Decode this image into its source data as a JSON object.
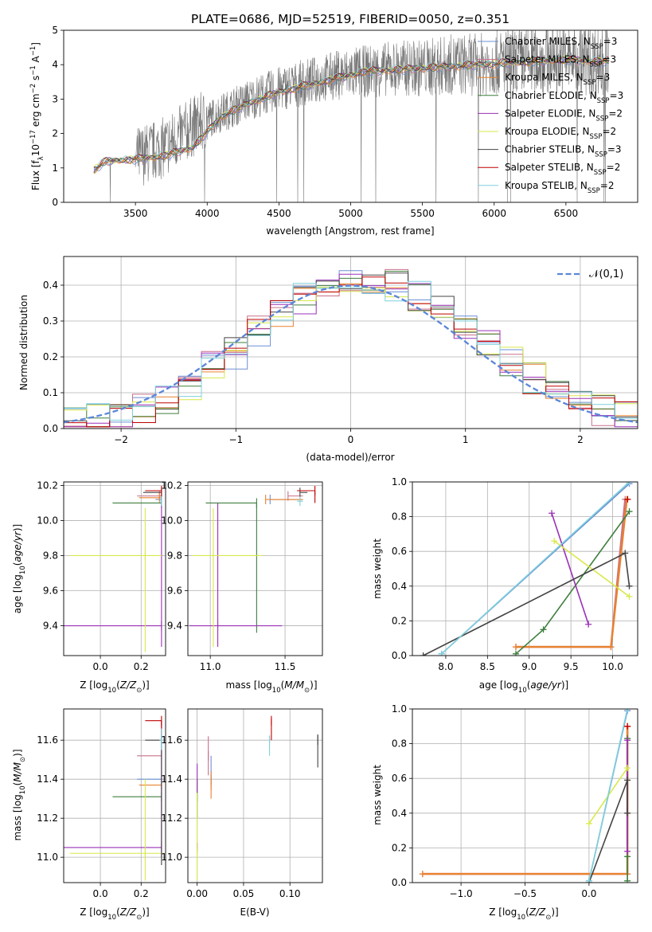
{
  "figure_title": "PLATE=0686, MJD=52519, FIBERID=0050, z=0.351",
  "palette": [
    "#6b8fd4",
    "#c9708a",
    "#e8822f",
    "#3f7f3f",
    "#9b30b8",
    "#d8e84a",
    "#444444",
    "#c00000",
    "#7fd0dc"
  ],
  "series_names": [
    "Chabrier MILES, N_SSP=3",
    "Salpeter MILES, N_SSP=3",
    "Kroupa MILES, N_SSP=3",
    "Chabrier ELODIE, N_SSP=3",
    "Salpeter ELODIE, N_SSP=2",
    "Kroupa ELODIE, N_SSP=2",
    "Chabrier STELIB, N_SSP=3",
    "Salpeter STELIB, N_SSP=2",
    "Kroupa STELIB, N_SSP=2"
  ],
  "chart_data": [
    {
      "id": "spectrum",
      "type": "line",
      "title": "PLATE=0686, MJD=52519, FIBERID=0050, z=0.351",
      "xlabel": "wavelength [Angstrom, rest frame]",
      "ylabel": "Flux [f_λ 10^-17 erg cm^-2 s^-1 A^-1]",
      "xlim": [
        3000,
        7000
      ],
      "ylim": [
        0,
        5
      ],
      "xticks": [
        3500,
        4000,
        4500,
        5000,
        5500,
        6000,
        6500
      ],
      "yticks": [
        0,
        1,
        2,
        3,
        4,
        5
      ],
      "legend_position": "top-right",
      "data_observed": {
        "x": [
          3210,
          3300,
          3500,
          3700,
          3900,
          4100,
          4300,
          4500,
          4700,
          4900,
          5100,
          5300,
          5500,
          5700,
          5900,
          6100,
          6300,
          6500,
          6700,
          6800
        ],
        "y": [
          0.9,
          1.2,
          1.3,
          1.6,
          2.2,
          2.6,
          3.0,
          3.3,
          3.5,
          3.7,
          3.8,
          3.9,
          3.9,
          4.0,
          4.0,
          4.1,
          4.1,
          4.2,
          4.1,
          4.1
        ]
      },
      "model_curve": {
        "x": [
          3210,
          3300,
          3500,
          3700,
          3900,
          4100,
          4300,
          4500,
          4700,
          4900,
          5100,
          5300,
          5500,
          5700,
          5900,
          6100,
          6300,
          6500,
          6700,
          6800
        ],
        "y": [
          0.95,
          1.2,
          1.25,
          1.35,
          1.6,
          2.5,
          2.9,
          3.2,
          3.4,
          3.6,
          3.8,
          3.85,
          3.9,
          3.95,
          4.0,
          4.05,
          4.1,
          4.15,
          4.1,
          4.1
        ]
      }
    },
    {
      "id": "residuals",
      "type": "line",
      "xlabel": "(data-model)/error",
      "ylabel": "Normed distribution",
      "xlim": [
        -2.5,
        2.5
      ],
      "ylim": [
        0,
        0.48
      ],
      "xticks": [
        -2,
        -1,
        0,
        1,
        2
      ],
      "yticks": [
        0.0,
        0.1,
        0.2,
        0.3,
        0.4
      ],
      "legend_label": "𝒩(0,1)",
      "legend_position": "top-right",
      "hist_bins": [
        -2.5,
        -2.3,
        -2.1,
        -1.9,
        -1.7,
        -1.5,
        -1.3,
        -1.1,
        -0.9,
        -0.7,
        -0.5,
        -0.3,
        -0.1,
        0.1,
        0.3,
        0.5,
        0.7,
        0.9,
        1.1,
        1.3,
        1.5,
        1.7,
        1.9,
        2.1,
        2.3,
        2.5
      ],
      "hist_values": [
        0.02,
        0.03,
        0.04,
        0.06,
        0.08,
        0.12,
        0.17,
        0.21,
        0.27,
        0.33,
        0.36,
        0.38,
        0.4,
        0.41,
        0.4,
        0.37,
        0.33,
        0.28,
        0.23,
        0.19,
        0.14,
        0.1,
        0.07,
        0.05,
        0.03
      ]
    },
    {
      "id": "age_vs_Z",
      "type": "scatter",
      "xlabel": "Z [log10(Z/Z_sun)]",
      "ylabel": "age [log10(age/yr)]",
      "xlim": [
        -0.18,
        0.32
      ],
      "ylim": [
        9.23,
        10.22
      ],
      "xticks": [
        0.0,
        0.2
      ],
      "yticks": [
        9.4,
        9.6,
        9.8,
        10.0,
        10.2
      ],
      "series": [
        {
          "x": 0.3,
          "xlo": 0.27,
          "xhi": 0.3,
          "y": 10.12,
          "ylo": 10.12,
          "yhi": 10.12
        },
        {
          "x": 0.29,
          "xlo": 0.18,
          "xhi": 0.3,
          "y": 10.14,
          "ylo": 10.14,
          "yhi": 10.14
        },
        {
          "x": 0.29,
          "xlo": 0.19,
          "xhi": 0.3,
          "y": 10.13,
          "ylo": 10.13,
          "yhi": 10.13
        },
        {
          "x": 0.3,
          "xlo": 0.06,
          "xhi": 0.3,
          "y": 10.1,
          "ylo": 10.1,
          "yhi": 10.1
        },
        {
          "x": 0.3,
          "xlo": -0.18,
          "xhi": 0.3,
          "y": 9.4,
          "ylo": 9.28,
          "yhi": 10.14
        },
        {
          "x": 0.22,
          "xlo": -0.15,
          "xhi": 0.3,
          "y": 9.8,
          "ylo": 9.25,
          "yhi": 10.07
        },
        {
          "x": 0.3,
          "xlo": 0.21,
          "xhi": 0.3,
          "y": 10.16,
          "ylo": 10.16,
          "yhi": 10.16
        },
        {
          "x": 0.3,
          "xlo": 0.22,
          "xhi": 0.3,
          "y": 10.17,
          "ylo": 10.17,
          "yhi": 10.17
        },
        {
          "x": 0.3,
          "xlo": 0.29,
          "xhi": 0.3,
          "y": 10.11,
          "ylo": 10.11,
          "yhi": 10.11
        }
      ]
    },
    {
      "id": "age_vs_mass",
      "type": "scatter",
      "xlabel": "mass [log10(M/M_sun)]",
      "ylabel": "",
      "xlim": [
        10.85,
        11.75
      ],
      "ylim": [
        9.23,
        10.22
      ],
      "xticks": [
        11.0,
        11.5
      ],
      "yticks": [
        9.4,
        9.6,
        9.8,
        10.0,
        10.2
      ],
      "series": [
        {
          "x": 11.4,
          "xlo": 11.4,
          "xhi": 11.62,
          "y": 10.12,
          "ylo": 10.12,
          "yhi": 10.12
        },
        {
          "x": 11.52,
          "xlo": 11.52,
          "xhi": 11.62,
          "y": 10.14,
          "ylo": 10.14,
          "yhi": 10.14
        },
        {
          "x": 11.37,
          "xlo": 11.37,
          "xhi": 11.62,
          "y": 10.12,
          "ylo": 10.12,
          "yhi": 10.12
        },
        {
          "x": 11.31,
          "xlo": 10.97,
          "xhi": 11.31,
          "y": 10.1,
          "ylo": 9.36,
          "yhi": 10.1
        },
        {
          "x": 11.05,
          "xlo": 10.86,
          "xhi": 11.48,
          "y": 9.4,
          "ylo": 9.28,
          "yhi": 10.1
        },
        {
          "x": 11.02,
          "xlo": 10.88,
          "xhi": 11.35,
          "y": 9.8,
          "ylo": 9.28,
          "yhi": 10.07
        },
        {
          "x": 11.6,
          "xlo": 11.6,
          "xhi": 11.65,
          "y": 10.16,
          "ylo": 10.16,
          "yhi": 10.16
        },
        {
          "x": 11.7,
          "xlo": 11.58,
          "xhi": 11.7,
          "y": 10.17,
          "ylo": 10.1,
          "yhi": 10.17
        },
        {
          "x": 11.6,
          "xlo": 11.58,
          "xhi": 11.62,
          "y": 10.11,
          "ylo": 10.11,
          "yhi": 10.11
        }
      ]
    },
    {
      "id": "weight_vs_age",
      "type": "line",
      "xlabel": "age [log10(age/yr)]",
      "ylabel": "mass weight",
      "xlim": [
        7.6,
        10.3
      ],
      "ylim": [
        0,
        1
      ],
      "xticks": [
        8.0,
        8.5,
        9.0,
        9.5,
        10.0
      ],
      "yticks": [
        0.0,
        0.2,
        0.4,
        0.6,
        0.8,
        1.0
      ],
      "series": [
        {
          "x": [
            7.95,
            10.2
          ],
          "y": [
            0.01,
            0.99
          ]
        },
        {
          "x": [
            8.84,
            9.98,
            10.15
          ],
          "y": [
            0.05,
            0.05,
            0.9
          ]
        },
        {
          "x": [
            8.84,
            9.98,
            10.17
          ],
          "y": [
            0.05,
            0.05,
            0.9
          ]
        },
        {
          "x": [
            8.84,
            9.17,
            10.2
          ],
          "y": [
            0.01,
            0.15,
            0.83
          ]
        },
        {
          "x": [
            9.27,
            9.71
          ],
          "y": [
            0.82,
            0.18
          ]
        },
        {
          "x": [
            9.3,
            10.2
          ],
          "y": [
            0.66,
            0.34
          ]
        },
        {
          "x": [
            7.73,
            10.15,
            10.2
          ],
          "y": [
            0.0,
            0.59,
            0.4
          ]
        },
        {
          "x": [
            10.18
          ],
          "y": [
            0.9
          ]
        },
        {
          "x": [
            7.95,
            10.2
          ],
          "y": [
            0.01,
            1.0
          ]
        }
      ]
    },
    {
      "id": "mass_vs_Z",
      "type": "scatter",
      "xlabel": "Z [log10(Z/Z_sun)]",
      "ylabel": "mass [log10(M/M_sun)]",
      "xlim": [
        -0.18,
        0.32
      ],
      "ylim": [
        10.87,
        11.76
      ],
      "xticks": [
        0.0,
        0.2
      ],
      "yticks": [
        11.0,
        11.2,
        11.4,
        11.6
      ],
      "series": [
        {
          "x": 0.3,
          "xlo": 0.18,
          "xhi": 0.3,
          "y": 11.4,
          "ylo": 11.4,
          "yhi": 11.4
        },
        {
          "x": 0.3,
          "xlo": 0.18,
          "xhi": 0.3,
          "y": 11.52,
          "ylo": 11.52,
          "yhi": 11.52
        },
        {
          "x": 0.3,
          "xlo": 0.19,
          "xhi": 0.3,
          "y": 11.37,
          "ylo": 11.37,
          "yhi": 11.37
        },
        {
          "x": 0.3,
          "xlo": 0.06,
          "xhi": 0.3,
          "y": 11.31,
          "ylo": 11.31,
          "yhi": 11.31
        },
        {
          "x": 0.3,
          "xlo": -0.18,
          "xhi": 0.3,
          "y": 11.05,
          "ylo": 11.0,
          "yhi": 11.7
        },
        {
          "x": 0.22,
          "xlo": -0.15,
          "xhi": 0.3,
          "y": 11.02,
          "ylo": 10.88,
          "yhi": 11.4
        },
        {
          "x": 0.3,
          "xlo": 0.22,
          "xhi": 0.3,
          "y": 11.6,
          "ylo": 10.96,
          "yhi": 11.6
        },
        {
          "x": 0.3,
          "xlo": 0.22,
          "xhi": 0.3,
          "y": 11.7,
          "ylo": 11.58,
          "yhi": 11.7
        },
        {
          "x": 0.3,
          "xlo": 0.29,
          "xhi": 0.3,
          "y": 11.6,
          "ylo": 11.55,
          "yhi": 11.66
        }
      ]
    },
    {
      "id": "mass_vs_ebv",
      "type": "scatter",
      "xlabel": "E(B-V)",
      "ylabel": "",
      "xlim": [
        -0.01,
        0.135
      ],
      "ylim": [
        10.87,
        11.76
      ],
      "xticks": [
        0.0,
        0.05,
        0.1
      ],
      "yticks": [
        11.0,
        11.2,
        11.4,
        11.6
      ],
      "series": [
        {
          "x": 0.015,
          "xlo": 0.015,
          "xhi": 0.015,
          "y": 11.4,
          "ylo": 11.37,
          "yhi": 11.52
        },
        {
          "x": 0.012,
          "xlo": 0.012,
          "xhi": 0.012,
          "y": 11.52,
          "ylo": 11.42,
          "yhi": 11.62
        },
        {
          "x": 0.015,
          "xlo": 0.015,
          "xhi": 0.015,
          "y": 11.37,
          "ylo": 11.3,
          "yhi": 11.44
        },
        {
          "x": 0.0,
          "xlo": 0.0,
          "xhi": 0.0,
          "y": 11.31,
          "ylo": 11.2,
          "yhi": 11.4
        },
        {
          "x": 0.0,
          "xlo": 0.0,
          "xhi": 0.0,
          "y": 11.05,
          "ylo": 11.33,
          "yhi": 11.48
        },
        {
          "x": 0.0,
          "xlo": 0.0,
          "xhi": 0.0,
          "y": 11.02,
          "ylo": 10.88,
          "yhi": 11.33
        },
        {
          "x": 0.13,
          "xlo": 0.13,
          "xhi": 0.13,
          "y": 11.6,
          "ylo": 11.46,
          "yhi": 11.63
        },
        {
          "x": 0.08,
          "xlo": 0.08,
          "xhi": 0.08,
          "y": 11.7,
          "ylo": 11.6,
          "yhi": 11.71
        },
        {
          "x": 0.078,
          "xlo": 0.078,
          "xhi": 0.078,
          "y": 11.6,
          "ylo": 11.52,
          "yhi": 11.62
        }
      ]
    },
    {
      "id": "weight_vs_Z",
      "type": "line",
      "xlabel": "Z [log10(Z/Z_sun)]",
      "ylabel": "mass weight",
      "xlim": [
        -1.38,
        0.38
      ],
      "ylim": [
        0,
        1
      ],
      "xticks": [
        -1.0,
        -0.5,
        0.0
      ],
      "yticks": [
        0.0,
        0.2,
        0.4,
        0.6,
        0.8,
        1.0
      ],
      "series": [
        {
          "x": [
            0.0,
            0.3
          ],
          "y": [
            0.01,
            0.99
          ]
        },
        {
          "x": [
            -1.3,
            0.3,
            0.3
          ],
          "y": [
            0.05,
            0.05,
            0.9
          ]
        },
        {
          "x": [
            -1.3,
            0.3,
            0.3
          ],
          "y": [
            0.05,
            0.05,
            0.9
          ]
        },
        {
          "x": [
            0.3,
            0.3,
            0.3
          ],
          "y": [
            0.01,
            0.15,
            0.83
          ]
        },
        {
          "x": [
            0.3,
            0.3
          ],
          "y": [
            0.82,
            0.18
          ]
        },
        {
          "x": [
            0.0,
            0.3
          ],
          "y": [
            0.34,
            0.66
          ]
        },
        {
          "x": [
            0.0,
            0.3,
            0.3
          ],
          "y": [
            0.0,
            0.59,
            0.4
          ]
        },
        {
          "x": [
            0.3
          ],
          "y": [
            0.9
          ]
        },
        {
          "x": [
            0.0,
            0.3
          ],
          "y": [
            0.01,
            1.0
          ]
        }
      ]
    }
  ]
}
